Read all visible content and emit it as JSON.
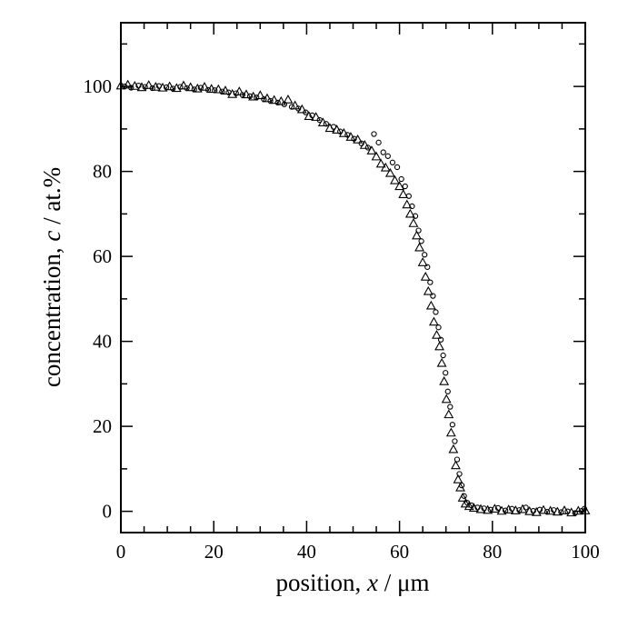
{
  "chart_data": {
    "type": "scatter",
    "xlabel": "position, x / μm",
    "xlabel_parts": {
      "before": "position, ",
      "var": "x",
      "after": " / μm"
    },
    "ylabel": "concentration, c / at.%",
    "ylabel_parts": {
      "before": "concentration, ",
      "var": "c",
      "after": " / at.%"
    },
    "xlim": [
      0,
      100
    ],
    "ylim": [
      -5,
      115
    ],
    "xticks": [
      0,
      20,
      40,
      60,
      80,
      100
    ],
    "yticks": [
      0,
      20,
      40,
      60,
      80,
      100
    ],
    "xtick_labels": [
      "0",
      "20",
      "40",
      "60",
      "80",
      "100"
    ],
    "ytick_labels": [
      "0",
      "20",
      "40",
      "60",
      "80",
      "100"
    ],
    "grid": false,
    "series": [
      {
        "marker": "triangle",
        "points": [
          [
            0,
            100.2
          ],
          [
            1.5,
            100.4
          ],
          [
            3,
            100.1
          ],
          [
            4.5,
            99.8
          ],
          [
            6,
            100.3
          ],
          [
            7.5,
            99.9
          ],
          [
            9,
            99.7
          ],
          [
            10.5,
            100.0
          ],
          [
            12,
            99.6
          ],
          [
            13.5,
            100.2
          ],
          [
            15,
            99.8
          ],
          [
            16.5,
            99.5
          ],
          [
            18,
            99.9
          ],
          [
            19.5,
            99.4
          ],
          [
            21,
            99.3
          ],
          [
            22.5,
            99.0
          ],
          [
            24,
            98.2
          ],
          [
            25.5,
            98.8
          ],
          [
            27,
            98.1
          ],
          [
            28.5,
            97.6
          ],
          [
            30,
            97.9
          ],
          [
            31.5,
            97.2
          ],
          [
            33,
            96.8
          ],
          [
            34.5,
            96.5
          ],
          [
            36,
            96.9
          ],
          [
            37.5,
            95.5
          ],
          [
            39,
            94.6
          ],
          [
            40.5,
            93.0
          ],
          [
            42,
            92.8
          ],
          [
            43.5,
            91.5
          ],
          [
            45,
            90.2
          ],
          [
            46.5,
            89.8
          ],
          [
            48,
            89.0
          ],
          [
            49.5,
            88.1
          ],
          [
            51,
            87.5
          ],
          [
            52.5,
            86.2
          ],
          [
            54,
            84.9
          ],
          [
            55,
            83.5
          ],
          [
            56,
            81.8
          ],
          [
            57,
            80.9
          ],
          [
            58,
            79.6
          ],
          [
            59,
            77.9
          ],
          [
            60,
            76.5
          ],
          [
            60.8,
            74.6
          ],
          [
            61.6,
            72.2
          ],
          [
            62.3,
            70.0
          ],
          [
            63,
            67.8
          ],
          [
            63.7,
            64.9
          ],
          [
            64.3,
            62.1
          ],
          [
            65,
            58.6
          ],
          [
            65.6,
            55.2
          ],
          [
            66.2,
            51.8
          ],
          [
            66.8,
            48.4
          ],
          [
            67.4,
            44.6
          ],
          [
            68,
            41.5
          ],
          [
            68.6,
            38.8
          ],
          [
            69.1,
            34.9
          ],
          [
            69.6,
            30.6
          ],
          [
            70.1,
            26.4
          ],
          [
            70.6,
            22.8
          ],
          [
            71.1,
            18.5
          ],
          [
            71.6,
            14.6
          ],
          [
            72.1,
            10.8
          ],
          [
            72.6,
            7.5
          ],
          [
            73.1,
            5.6
          ],
          [
            73.6,
            3.2
          ],
          [
            74.2,
            1.8
          ],
          [
            75,
            1.2
          ],
          [
            76,
            0.8
          ],
          [
            77.5,
            0.5
          ],
          [
            79,
            0.3
          ],
          [
            80.5,
            0.6
          ],
          [
            82,
            0.1
          ],
          [
            83.5,
            0.4
          ],
          [
            85,
            0.2
          ],
          [
            86.5,
            0.5
          ],
          [
            88,
            0.0
          ],
          [
            89.5,
            -0.2
          ],
          [
            91,
            0.3
          ],
          [
            92.5,
            0.1
          ],
          [
            94,
            -0.1
          ],
          [
            95.5,
            0.2
          ],
          [
            97,
            -0.3
          ],
          [
            98.5,
            0.1
          ],
          [
            100,
            0.2
          ]
        ]
      },
      {
        "marker": "circle",
        "points": [
          [
            0.8,
            100.0
          ],
          [
            2.2,
            99.7
          ],
          [
            3.8,
            100.2
          ],
          [
            5.2,
            99.9
          ],
          [
            6.8,
            99.6
          ],
          [
            8.2,
            100.1
          ],
          [
            9.8,
            99.8
          ],
          [
            11.2,
            99.5
          ],
          [
            12.8,
            99.9
          ],
          [
            14.2,
            99.6
          ],
          [
            15.8,
            99.3
          ],
          [
            17.2,
            99.7
          ],
          [
            18.8,
            99.2
          ],
          [
            20.2,
            99.1
          ],
          [
            21.8,
            98.8
          ],
          [
            23.2,
            98.6
          ],
          [
            24.8,
            98.4
          ],
          [
            26.2,
            98.0
          ],
          [
            27.8,
            97.7
          ],
          [
            29.2,
            97.4
          ],
          [
            30.8,
            97.0
          ],
          [
            32.2,
            96.6
          ],
          [
            33.8,
            96.2
          ],
          [
            35.2,
            95.8
          ],
          [
            36.8,
            95.2
          ],
          [
            38.2,
            94.8
          ],
          [
            39.8,
            93.9
          ],
          [
            41.2,
            93.2
          ],
          [
            42.8,
            92.1
          ],
          [
            44.2,
            91.2
          ],
          [
            45.8,
            90.5
          ],
          [
            47.2,
            89.4
          ],
          [
            48.8,
            88.6
          ],
          [
            50.2,
            87.7
          ],
          [
            51.8,
            86.6
          ],
          [
            53.2,
            85.6
          ],
          [
            54.5,
            88.8
          ],
          [
            55.5,
            86.8
          ],
          [
            56.5,
            84.5
          ],
          [
            57.5,
            83.6
          ],
          [
            58.5,
            82.1
          ],
          [
            59.5,
            81.0
          ],
          [
            60.4,
            78.2
          ],
          [
            61.2,
            76.5
          ],
          [
            62,
            74.2
          ],
          [
            62.7,
            71.8
          ],
          [
            63.4,
            69.5
          ],
          [
            64.1,
            66.1
          ],
          [
            64.7,
            63.6
          ],
          [
            65.4,
            60.4
          ],
          [
            66,
            57.5
          ],
          [
            66.6,
            53.9
          ],
          [
            67.2,
            50.7
          ],
          [
            67.8,
            46.9
          ],
          [
            68.4,
            43.3
          ],
          [
            68.9,
            40.4
          ],
          [
            69.4,
            36.7
          ],
          [
            69.9,
            32.6
          ],
          [
            70.4,
            28.2
          ],
          [
            70.9,
            24.6
          ],
          [
            71.4,
            20.4
          ],
          [
            71.9,
            16.5
          ],
          [
            72.4,
            12.2
          ],
          [
            72.9,
            8.8
          ],
          [
            73.4,
            6.1
          ],
          [
            73.9,
            3.6
          ],
          [
            74.6,
            2.0
          ],
          [
            75.5,
            1.4
          ],
          [
            76.8,
            0.9
          ],
          [
            78.2,
            0.7
          ],
          [
            79.6,
            0.4
          ],
          [
            81.2,
            0.8
          ],
          [
            82.8,
            0.2
          ],
          [
            84.2,
            0.6
          ],
          [
            85.8,
            0.3
          ],
          [
            87.2,
            0.9
          ],
          [
            88.8,
            0.1
          ],
          [
            90.2,
            0.4
          ],
          [
            91.8,
            -0.1
          ],
          [
            93.2,
            0.3
          ],
          [
            94.8,
            -0.2
          ],
          [
            96.2,
            0.0
          ],
          [
            97.8,
            -0.4
          ],
          [
            99.2,
            0.1
          ],
          [
            99.8,
            0.6
          ]
        ]
      }
    ]
  }
}
